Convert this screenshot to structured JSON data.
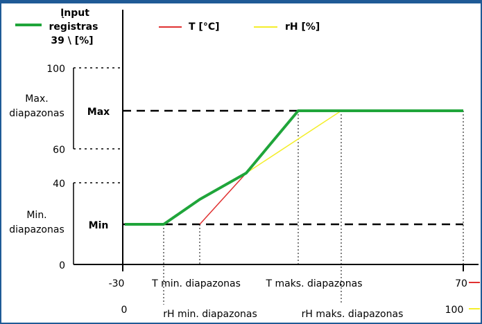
{
  "legend": {
    "input": {
      "line1": "Įnput",
      "line2": "registras",
      "line3": "39 \\ [%]",
      "color": "#1fa53a"
    },
    "temperature": {
      "label": "T [°C]",
      "color": "#e03030"
    },
    "humidity": {
      "label": "rH [%]",
      "color": "#f4ee2a"
    }
  },
  "y_axis": {
    "ticks": [
      "100",
      "60",
      "40",
      "0"
    ],
    "max_range": {
      "line1": "Max.",
      "line2": "diapazonas"
    },
    "min_range": {
      "line1": "Min.",
      "line2": "diapazonas"
    },
    "max_label": "Max",
    "min_label": "Min"
  },
  "x_axis": {
    "t_start": "-30",
    "t_end": "70",
    "rh_start": "0",
    "rh_end": "100",
    "t_min": "T min. diapazonas",
    "t_max": "T maks. diapazonas",
    "rh_min": "rH min. diapazonas",
    "rh_max": "rH maks. diapazonas"
  },
  "colors": {
    "frame": "#1f5a96",
    "green": "#1fa53a",
    "red": "#e03030",
    "yellow": "#f4ee2a"
  }
}
